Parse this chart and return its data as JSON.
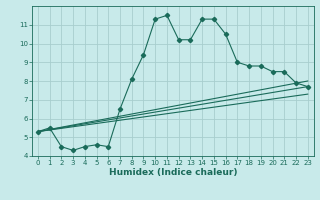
{
  "title": "",
  "xlabel": "Humidex (Indice chaleur)",
  "bg_color": "#c8eaea",
  "grid_color": "#a8cece",
  "line_color": "#1a6b5a",
  "xlim": [
    -0.5,
    23.5
  ],
  "ylim": [
    4,
    12
  ],
  "yticks": [
    4,
    5,
    6,
    7,
    8,
    9,
    10,
    11
  ],
  "xticks": [
    0,
    1,
    2,
    3,
    4,
    5,
    6,
    7,
    8,
    9,
    10,
    11,
    12,
    13,
    14,
    15,
    16,
    17,
    18,
    19,
    20,
    21,
    22,
    23
  ],
  "line1_x": [
    0,
    1,
    2,
    3,
    4,
    5,
    6,
    7,
    8,
    9,
    10,
    11,
    12,
    13,
    14,
    15,
    16,
    17,
    18,
    19,
    20,
    21,
    22,
    23
  ],
  "line1_y": [
    5.3,
    5.5,
    4.5,
    4.3,
    4.5,
    4.6,
    4.5,
    6.5,
    8.1,
    9.4,
    11.3,
    11.5,
    10.2,
    10.2,
    11.3,
    11.3,
    10.5,
    9.0,
    8.8,
    8.8,
    8.5,
    8.5,
    7.9,
    7.7
  ],
  "line2_x": [
    0,
    23
  ],
  "line2_y": [
    5.3,
    7.7
  ],
  "line3_x": [
    0,
    23
  ],
  "line3_y": [
    5.3,
    8.0
  ],
  "line4_x": [
    0,
    23
  ],
  "line4_y": [
    5.3,
    7.3
  ],
  "tick_fontsize": 5.0,
  "xlabel_fontsize": 6.5,
  "marker_size": 2.2,
  "linewidth": 0.8
}
